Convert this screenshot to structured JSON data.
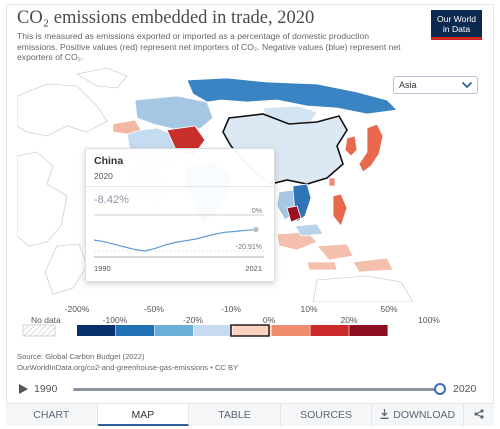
{
  "header": {
    "title": "CO₂ emissions embedded in trade, 2020",
    "subtitle": "This is measured as emissions exported or imported as a percentage of domestic production emissions. Positive values (red) represent net importers of CO₂. Negative values (blue) represent net exporters of CO₂."
  },
  "logo": {
    "line1": "Our World",
    "line2": "in Data"
  },
  "region_select": {
    "value": "Asia",
    "icon": "chevron-down-icon"
  },
  "tooltip": {
    "entity": "China",
    "year": "2020",
    "value": "-8.42%",
    "zero_label": "0%",
    "min_label": "-20.91%",
    "start_year": "1990",
    "end_year": "2021",
    "series_values": [
      -14.5,
      -15.5,
      -17.0,
      -18.5,
      -20.0,
      -20.91,
      -19.5,
      -17.5,
      -16.0,
      -15.0,
      -14.0,
      -12.5,
      -11.0,
      -10.0,
      -9.5,
      -8.9,
      -8.42
    ]
  },
  "legend": {
    "no_data_label": "No data",
    "upper_labels": [
      "-200%",
      "-50%",
      "-10%",
      "10%",
      "50%"
    ],
    "lower_labels": [
      "-100%",
      "-20%",
      "0%",
      "20%",
      "100%"
    ],
    "bin_colors": [
      "#08306b",
      "#2171b5",
      "#6baed6",
      "#c6dbef",
      "#fcd2c0",
      "#f08c6e",
      "#cb2a2a",
      "#8b0f1e"
    ]
  },
  "source": {
    "line1": "Source: Global Carbon Budget (2022)",
    "line2": "OurWorldInData.org/co2-and-greenhouse-gas-emissions • CC BY"
  },
  "timeline": {
    "start": "1990",
    "end": "2020",
    "progress": 1.0,
    "icon": "play-icon"
  },
  "tabs": {
    "chart": "CHART",
    "map": "MAP",
    "table": "TABLE",
    "sources": "SOURCES",
    "download": "DOWNLOAD",
    "share_icon": "share-icon"
  },
  "colors": {
    "brand_navy": "#0c2a4f",
    "brand_red": "#ce261e",
    "accent_blue": "#2f5e99"
  }
}
